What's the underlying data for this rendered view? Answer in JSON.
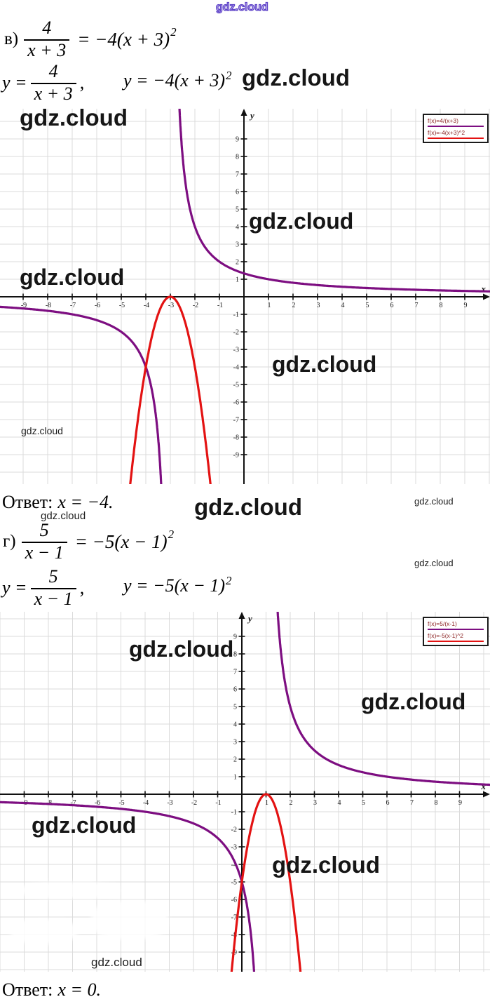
{
  "watermark": {
    "text": "gdz.cloud"
  },
  "section1": {
    "statement": {
      "label": "в)",
      "num": "4",
      "den": "x + 3",
      "rhs": "= −4(x + 3)",
      "sup": "2"
    },
    "functions": {
      "lhs": "y =",
      "num": "4",
      "den": "x + 3",
      "comma": ",",
      "rhs": "y = −4(x + 3)",
      "sup": "2"
    },
    "answer": {
      "prefix": "Ответ:",
      "value": "x = −4."
    }
  },
  "section2": {
    "statement": {
      "label": "г)",
      "num": "5",
      "den": "x − 1",
      "rhs": "= −5(x − 1)",
      "sup": "2"
    },
    "functions": {
      "lhs": "y =",
      "num": "5",
      "den": "x − 1",
      "comma": ",",
      "rhs": "y = −5(x − 1)",
      "sup": "2"
    },
    "answer": {
      "prefix": "Ответ:",
      "value": "x = 0."
    }
  },
  "chart_data": [
    {
      "type": "line",
      "title": "",
      "xlabel": "x",
      "ylabel": "y",
      "xlim": [
        -10,
        10
      ],
      "ylim": [
        -10.7,
        10.7
      ],
      "grid": true,
      "legend_position": "top-right",
      "x_ticks": [
        -9,
        -8,
        -7,
        -6,
        -5,
        -4,
        -3,
        -2,
        -1,
        1,
        2,
        3,
        4,
        5,
        6,
        7,
        8,
        9
      ],
      "y_ticks": [
        9,
        8,
        7,
        6,
        5,
        4,
        3,
        2,
        1,
        -1,
        -2,
        -3,
        -4,
        -5,
        -6,
        -7,
        -8,
        -9
      ],
      "legend": [
        {
          "label": "f(x)=4/(x+3)",
          "color": "#7d0e81"
        },
        {
          "label": "f(x)=-4(x+3)^2",
          "color": "#e31212"
        }
      ],
      "series": [
        {
          "name": "y = 4/(x+3)",
          "fn": "hyperbola",
          "a": 4,
          "h": -3,
          "color": "#7d0e81",
          "asymptote_x": -3
        },
        {
          "name": "y = -4(x+3)^2",
          "fn": "parabola",
          "a": -4,
          "h": -3,
          "color": "#e31212",
          "vertex": [
            -3,
            0
          ]
        }
      ],
      "intersection": [
        -4,
        -4
      ]
    },
    {
      "type": "line",
      "title": "",
      "xlabel": "x",
      "ylabel": "y",
      "xlim": [
        -10,
        10.3
      ],
      "ylim": [
        -10.4,
        10.4
      ],
      "grid": true,
      "legend_position": "top-right",
      "x_ticks": [
        -9,
        -8,
        -7,
        -6,
        -5,
        -4,
        -3,
        -2,
        -1,
        1,
        2,
        3,
        4,
        5,
        6,
        7,
        8,
        9
      ],
      "y_ticks": [
        9,
        8,
        7,
        6,
        5,
        4,
        3,
        2,
        1,
        -1,
        -2,
        -3,
        -4,
        -5,
        -6,
        -7,
        -8,
        -9
      ],
      "legend": [
        {
          "label": "f(x)=5/(x-1)",
          "color": "#7d0e81"
        },
        {
          "label": "f(x)=-5(x-1)^2",
          "color": "#e31212"
        }
      ],
      "series": [
        {
          "name": "y = 5/(x-1)",
          "fn": "hyperbola",
          "a": 5,
          "h": 1,
          "color": "#7d0e81",
          "asymptote_x": 1
        },
        {
          "name": "y = -5(x-1)^2",
          "fn": "parabola",
          "a": -5,
          "h": 1,
          "color": "#e31212",
          "vertex": [
            1,
            0
          ]
        }
      ],
      "intersection": [
        0,
        -5
      ]
    }
  ]
}
